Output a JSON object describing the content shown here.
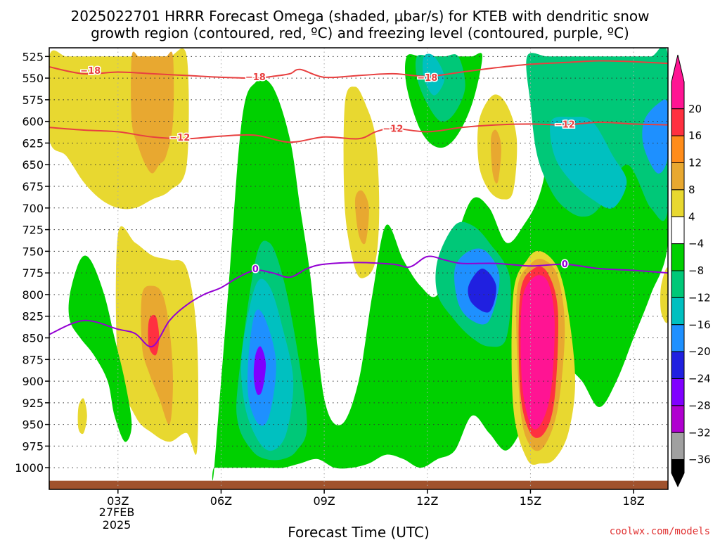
{
  "chart_data": {
    "type": "heatmap",
    "title_line1": "2025022701 HRRR Forecast Omega (shaded, μbar/s) for KTEB with dendritic snow",
    "title_line2": "growth region (contoured, red, ºC) and freezing level (contoured, purple, ºC)",
    "xlabel": "Forecast Time (UTC)",
    "x_ticks": [
      "03Z",
      "06Z",
      "09Z",
      "12Z",
      "15Z",
      "18Z"
    ],
    "x_tick_values": [
      3,
      6,
      9,
      12,
      15,
      18
    ],
    "x_date_line1": "27FEB",
    "x_date_line2": "2025",
    "xlim": [
      1,
      19
    ],
    "y_ticks": [
      525,
      550,
      575,
      600,
      625,
      650,
      675,
      700,
      725,
      750,
      775,
      800,
      825,
      850,
      875,
      900,
      925,
      950,
      975,
      1000
    ],
    "ylim": [
      515,
      1025
    ],
    "grid": true,
    "colorbar": {
      "labels": [
        "20",
        "16",
        "12",
        "8",
        "4",
        "−4",
        "−8",
        "−12",
        "−16",
        "−20",
        "−24",
        "−28",
        "−32",
        "−36"
      ],
      "bands": [
        {
          "from": 20,
          "to": 24,
          "color": "#ff1493"
        },
        {
          "from": 16,
          "to": 20,
          "color": "#ff3040"
        },
        {
          "from": 12,
          "to": 16,
          "color": "#ff8c1a"
        },
        {
          "from": 8,
          "to": 12,
          "color": "#e8a830"
        },
        {
          "from": 4,
          "to": 8,
          "color": "#e8d830"
        },
        {
          "from": -4,
          "to": 4,
          "color": "#ffffff"
        },
        {
          "from": -8,
          "to": -4,
          "color": "#00d000"
        },
        {
          "from": -12,
          "to": -8,
          "color": "#00c878"
        },
        {
          "from": -16,
          "to": -12,
          "color": "#00c0c0"
        },
        {
          "from": -20,
          "to": -16,
          "color": "#1e90ff"
        },
        {
          "from": -24,
          "to": -20,
          "color": "#2020e0"
        },
        {
          "from": -28,
          "to": -24,
          "color": "#8000ff"
        },
        {
          "from": -32,
          "to": -28,
          "color": "#b000d0"
        },
        {
          "from": -36,
          "to": -32,
          "color": "#a0a0a0"
        },
        {
          "from": -40,
          "to": -36,
          "color": "#000000"
        }
      ]
    },
    "omega_regions": [
      {
        "name": "yellow-ascent-early",
        "value": 6,
        "x": [
          1.0,
          1.5,
          2.0,
          2.5,
          3.0,
          3.5,
          4.0,
          4.5,
          5.0,
          5.0,
          4.5,
          4.0,
          3.5,
          3.0,
          2.5,
          2.0,
          1.5,
          1.0
        ],
        "y": [
          525,
          525,
          525,
          525,
          525,
          525,
          525,
          525,
          525,
          650,
          680,
          690,
          700,
          700,
          690,
          670,
          640,
          620
        ]
      },
      {
        "name": "orange-ascent-early",
        "value": 10,
        "x": [
          3.4,
          3.6,
          3.8,
          4.0,
          4.2,
          4.4,
          4.6,
          4.6,
          4.4,
          4.2,
          4.0,
          3.8,
          3.6,
          3.4
        ],
        "y": [
          525,
          525,
          525,
          525,
          525,
          525,
          525,
          600,
          640,
          650,
          660,
          650,
          630,
          600
        ]
      },
      {
        "name": "yellow-ascent-lowlevel",
        "value": 6,
        "x": [
          3.0,
          3.5,
          4.0,
          4.5,
          5.0,
          5.3,
          5.3,
          5.0,
          4.5,
          4.0,
          3.5,
          3.0
        ],
        "y": [
          730,
          740,
          755,
          760,
          770,
          850,
          980,
          960,
          970,
          960,
          940,
          880
        ]
      },
      {
        "name": "orange-ascent-lowlevel",
        "value": 10,
        "x": [
          3.7,
          4.0,
          4.3,
          4.5,
          4.6,
          4.5,
          4.2,
          3.9,
          3.7
        ],
        "y": [
          800,
          790,
          800,
          840,
          900,
          950,
          920,
          890,
          860
        ]
      },
      {
        "name": "red-ascent-lowlevel",
        "value": 18,
        "x": [
          3.9,
          4.1,
          4.2,
          4.1,
          3.9
        ],
        "y": [
          830,
          825,
          850,
          870,
          860
        ]
      },
      {
        "name": "green-descent-west",
        "value": -6,
        "x": [
          1.6,
          1.9,
          2.2,
          2.6,
          2.9,
          3.2,
          3.4,
          3.2,
          2.9,
          2.7,
          2.3,
          1.9,
          1.6
        ],
        "y": [
          800,
          760,
          760,
          800,
          850,
          900,
          950,
          970,
          940,
          900,
          870,
          850,
          830
        ]
      },
      {
        "name": "green-descent-main",
        "value": -6,
        "x": [
          5.8,
          6.2,
          6.6,
          7.0,
          7.5,
          8.0,
          8.3,
          8.6,
          9.0,
          9.5,
          10.0,
          10.4,
          10.8,
          11.3,
          11.8,
          12.3,
          12.8,
          13.3,
          13.8,
          14.3,
          14.8,
          15.3,
          15.8,
          16.5,
          17.2,
          17.8,
          18.3,
          19.0,
          19.0,
          18.5,
          18.0,
          17.5,
          17.0,
          16.5,
          16.0,
          15.6,
          15.2,
          14.8,
          14.3,
          13.8,
          13.3,
          12.8,
          12.3,
          11.8,
          11.3,
          10.8,
          10.3,
          9.8,
          9.3,
          8.8,
          8.3,
          7.8,
          7.3,
          6.8,
          6.3,
          5.8
        ],
        "y": [
          1000,
          800,
          600,
          555,
          560,
          620,
          700,
          780,
          920,
          950,
          900,
          800,
          720,
          760,
          790,
          800,
          740,
          690,
          700,
          740,
          720,
          680,
          590,
          560,
          550,
          560,
          580,
          600,
          740,
          800,
          850,
          900,
          930,
          900,
          880,
          860,
          900,
          950,
          980,
          960,
          940,
          980,
          990,
          1000,
          990,
          985,
          995,
          1000,
          1000,
          990,
          995,
          1000,
          1000,
          1000,
          1000,
          1000
        ]
      },
      {
        "name": "teal-descent-main",
        "value": -10,
        "x": [
          6.5,
          7.0,
          7.4,
          7.8,
          8.2,
          8.5,
          8.2,
          7.8,
          7.3,
          6.9,
          6.5
        ],
        "y": [
          900,
          760,
          740,
          780,
          860,
          950,
          980,
          990,
          990,
          980,
          950
        ]
      },
      {
        "name": "cyan-descent-main",
        "value": -14,
        "x": [
          6.6,
          7.0,
          7.4,
          7.8,
          8.1,
          7.9,
          7.5,
          7.1,
          6.7
        ],
        "y": [
          870,
          790,
          790,
          840,
          900,
          960,
          980,
          970,
          930
        ]
      },
      {
        "name": "blue-descent-main",
        "value": -18,
        "x": [
          6.8,
          7.0,
          7.3,
          7.6,
          7.4,
          7.1,
          6.8
        ],
        "y": [
          870,
          820,
          830,
          880,
          940,
          950,
          920
        ]
      },
      {
        "name": "violet-descent-main",
        "value": -26,
        "x": [
          7.0,
          7.15,
          7.3,
          7.2,
          7.05,
          6.95
        ],
        "y": [
          870,
          860,
          880,
          910,
          915,
          895
        ]
      },
      {
        "name": "teal-descent-late",
        "value": -10,
        "x": [
          12.3,
          12.8,
          13.3,
          13.8,
          14.4,
          14.3,
          13.8,
          13.3,
          12.8,
          12.3
        ],
        "y": [
          760,
          720,
          720,
          740,
          780,
          850,
          860,
          850,
          830,
          800
        ]
      },
      {
        "name": "blue-descent-late",
        "value": -18,
        "x": [
          12.8,
          13.2,
          13.7,
          14.1,
          13.8,
          13.3,
          12.9
        ],
        "y": [
          770,
          750,
          750,
          780,
          830,
          830,
          810
        ]
      },
      {
        "name": "darkblue-descent-late",
        "value": -22,
        "x": [
          13.2,
          13.6,
          14.0,
          13.8,
          13.3
        ],
        "y": [
          790,
          770,
          790,
          820,
          810
        ]
      },
      {
        "name": "green-descent-upper-mid",
        "value": -6,
        "x": [
          11.4,
          11.8,
          12.2,
          12.6,
          13.0,
          13.3,
          13.6,
          13.3,
          12.8,
          12.3,
          11.8,
          11.4
        ],
        "y": [
          525,
          525,
          525,
          525,
          525,
          525,
          525,
          580,
          620,
          630,
          610,
          560
        ]
      },
      {
        "name": "teal-descent-upper-mid",
        "value": -10,
        "x": [
          11.7,
          12.1,
          12.5,
          12.9,
          13.1,
          12.8,
          12.4,
          12.0,
          11.7
        ],
        "y": [
          525,
          525,
          525,
          525,
          560,
          590,
          600,
          580,
          550
        ]
      },
      {
        "name": "cyan-descent-upper-mid",
        "value": -14,
        "x": [
          11.9,
          12.2,
          12.5,
          12.2,
          11.9
        ],
        "y": [
          525,
          525,
          550,
          570,
          550
        ]
      },
      {
        "name": "teal-descent-upper-east",
        "value": -10,
        "x": [
          14.9,
          15.5,
          16.2,
          17.0,
          17.8,
          18.5,
          19.0,
          19.0,
          18.5,
          17.8,
          17.0,
          16.5,
          16.0,
          15.6,
          15.2,
          15.0
        ],
        "y": [
          525,
          525,
          525,
          525,
          525,
          525,
          525,
          700,
          700,
          650,
          700,
          710,
          700,
          680,
          640,
          580
        ]
      },
      {
        "name": "cyan-descent-upper-east",
        "value": -14,
        "x": [
          15.6,
          16.2,
          16.8,
          17.4,
          17.8,
          17.4,
          16.8,
          16.2,
          15.7
        ],
        "y": [
          600,
          595,
          600,
          640,
          670,
          700,
          690,
          670,
          640
        ]
      },
      {
        "name": "blue-descent-upper-east",
        "value": -18,
        "x": [
          18.3,
          18.7,
          19.0,
          19.0,
          18.7,
          18.3
        ],
        "y": [
          600,
          580,
          580,
          640,
          660,
          630
        ]
      },
      {
        "name": "yellow-ascent-mid",
        "value": 6,
        "x": [
          9.6,
          9.9,
          10.2,
          10.5,
          10.6,
          10.5,
          10.2,
          9.9,
          9.6
        ],
        "y": [
          580,
          560,
          580,
          620,
          700,
          760,
          780,
          770,
          700
        ]
      },
      {
        "name": "orange-ascent-mid",
        "value": 10,
        "x": [
          9.9,
          10.1,
          10.3,
          10.2,
          10.0
        ],
        "y": [
          690,
          680,
          700,
          740,
          730
        ]
      },
      {
        "name": "yellow-ascent-east",
        "value": 6,
        "x": [
          13.5,
          13.9,
          14.3,
          14.6,
          14.5,
          14.2,
          13.8,
          13.5
        ],
        "y": [
          600,
          570,
          580,
          620,
          680,
          690,
          680,
          650
        ]
      },
      {
        "name": "orange-ascent-east",
        "value": 10,
        "x": [
          13.85,
          14.0,
          14.15,
          14.05,
          13.9
        ],
        "y": [
          620,
          610,
          630,
          670,
          660
        ]
      },
      {
        "name": "yellow-ascent-strong",
        "value": 6,
        "x": [
          14.5,
          14.9,
          15.3,
          15.8,
          16.1,
          16.3,
          16.1,
          15.7,
          15.3,
          14.9,
          14.5
        ],
        "y": [
          800,
          760,
          750,
          770,
          820,
          900,
          960,
          990,
          995,
          990,
          930
        ]
      },
      {
        "name": "orange-ascent-strong",
        "value": 10,
        "x": [
          14.6,
          15.0,
          15.4,
          15.8,
          16.0,
          15.8,
          15.4,
          15.0,
          14.7
        ],
        "y": [
          800,
          765,
          760,
          780,
          840,
          930,
          975,
          975,
          930
        ]
      },
      {
        "name": "red-ascent-strong",
        "value": 18,
        "x": [
          14.7,
          15.1,
          15.5,
          15.8,
          15.7,
          15.4,
          15.0,
          14.7
        ],
        "y": [
          800,
          770,
          775,
          820,
          920,
          960,
          960,
          910
        ]
      },
      {
        "name": "magenta-ascent-strong",
        "value": 22,
        "x": [
          14.75,
          15.1,
          15.5,
          15.7,
          15.6,
          15.3,
          15.0,
          14.75
        ],
        "y": [
          810,
          780,
          785,
          830,
          910,
          950,
          950,
          900
        ]
      },
      {
        "name": "yellow-ascent-west-small",
        "value": 6,
        "x": [
          1.85,
          2.0,
          2.1,
          2.0,
          1.85
        ],
        "y": [
          930,
          920,
          940,
          960,
          955
        ]
      },
      {
        "name": "yellow-ascent-far-east",
        "value": 6,
        "x": [
          18.8,
          19.0,
          19.0,
          18.8
        ],
        "y": [
          790,
          770,
          830,
          820
        ]
      }
    ],
    "contours": [
      {
        "name": "-18 °C isotherm",
        "color": "#e84040",
        "x": [
          1.0,
          2.0,
          3.0,
          4.0,
          5.0,
          6.0,
          7.0,
          7.5,
          8.0,
          8.3,
          9.0,
          10.0,
          11.0,
          12.0,
          13.0,
          14.0,
          15.0,
          16.0,
          17.0,
          18.0,
          19.0
        ],
        "y": [
          537,
          545,
          543,
          545,
          547,
          549,
          550,
          548,
          545,
          540,
          549,
          547,
          545,
          548,
          543,
          538,
          534,
          532,
          530,
          531,
          533
        ],
        "labels": [
          {
            "x": 2.2,
            "y": 542,
            "text": "−18"
          },
          {
            "x": 7.0,
            "y": 549,
            "text": "−18"
          },
          {
            "x": 12.0,
            "y": 550,
            "text": "−18"
          }
        ]
      },
      {
        "name": "-12 °C isotherm",
        "color": "#e84040",
        "x": [
          1.0,
          2.0,
          3.0,
          4.0,
          5.0,
          6.0,
          7.0,
          8.0,
          9.0,
          10.0,
          10.5,
          11.0,
          12.0,
          13.0,
          14.0,
          15.0,
          16.0,
          17.0,
          18.0,
          19.0
        ],
        "y": [
          607,
          610,
          612,
          618,
          620,
          617,
          616,
          624,
          618,
          620,
          612,
          608,
          612,
          607,
          604,
          603,
          604,
          601,
          603,
          604
        ],
        "labels": [
          {
            "x": 4.8,
            "y": 619,
            "text": "−12"
          },
          {
            "x": 11.0,
            "y": 609,
            "text": "−12"
          },
          {
            "x": 16.0,
            "y": 604,
            "text": "−12"
          }
        ]
      },
      {
        "name": "0 °C freezing level",
        "color": "#9400d3",
        "x": [
          1.0,
          2.0,
          3.0,
          3.5,
          4.0,
          4.5,
          5.0,
          5.5,
          6.0,
          6.5,
          7.0,
          7.5,
          8.0,
          8.5,
          9.0,
          10.0,
          11.0,
          11.5,
          12.0,
          12.5,
          13.0,
          14.0,
          15.0,
          16.0,
          17.0,
          18.0,
          19.0
        ],
        "y": [
          846,
          830,
          840,
          845,
          860,
          830,
          812,
          800,
          792,
          780,
          772,
          775,
          780,
          770,
          765,
          763,
          765,
          768,
          756,
          760,
          764,
          764,
          767,
          765,
          770,
          772,
          775
        ],
        "labels": [
          {
            "x": 7.0,
            "y": 771,
            "text": "0"
          },
          {
            "x": 16.0,
            "y": 765,
            "text": "0"
          }
        ]
      }
    ],
    "credit": "coolwx.com/models"
  }
}
